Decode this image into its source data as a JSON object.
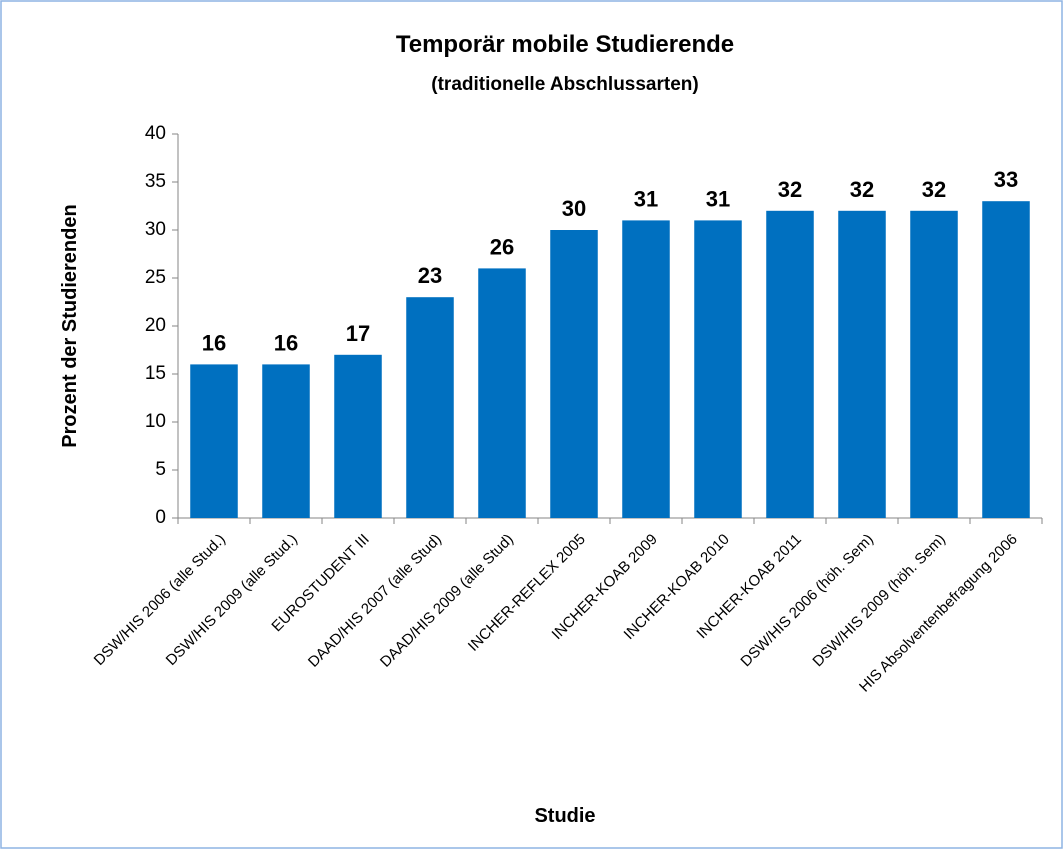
{
  "chart_data": {
    "type": "bar",
    "title": "Temporär mobile Studierende",
    "subtitle": "(traditionelle Abschlussarten)",
    "x_label": "Studie",
    "y_label": "Prozent der Studierenden",
    "categories": [
      "DSW/HIS 2006 (alle Stud.)",
      "DSW/HIS 2009 (alle Stud.)",
      "EUROSTUDENT III",
      "DAAD/HIS 2007 (alle Stud)",
      "DAAD/HIS 2009 (alle Stud)",
      "INCHER-REFLEX 2005",
      "INCHER-KOAB 2009",
      "INCHER-KOAB 2010",
      "INCHER-KOAB 2011",
      "DSW/HIS 2006 (höh. Sem)",
      "DSW/HIS 2009 (höh. Sem)",
      "HIS Absolventenbefragung 2006"
    ],
    "values": [
      16,
      16,
      17,
      23,
      26,
      30,
      31,
      31,
      32,
      32,
      32,
      33
    ],
    "color": "#0070c0",
    "ylim": [
      0,
      40
    ],
    "yticks": [
      0,
      5,
      10,
      15,
      20,
      25,
      30,
      35,
      40
    ],
    "grid": false
  }
}
